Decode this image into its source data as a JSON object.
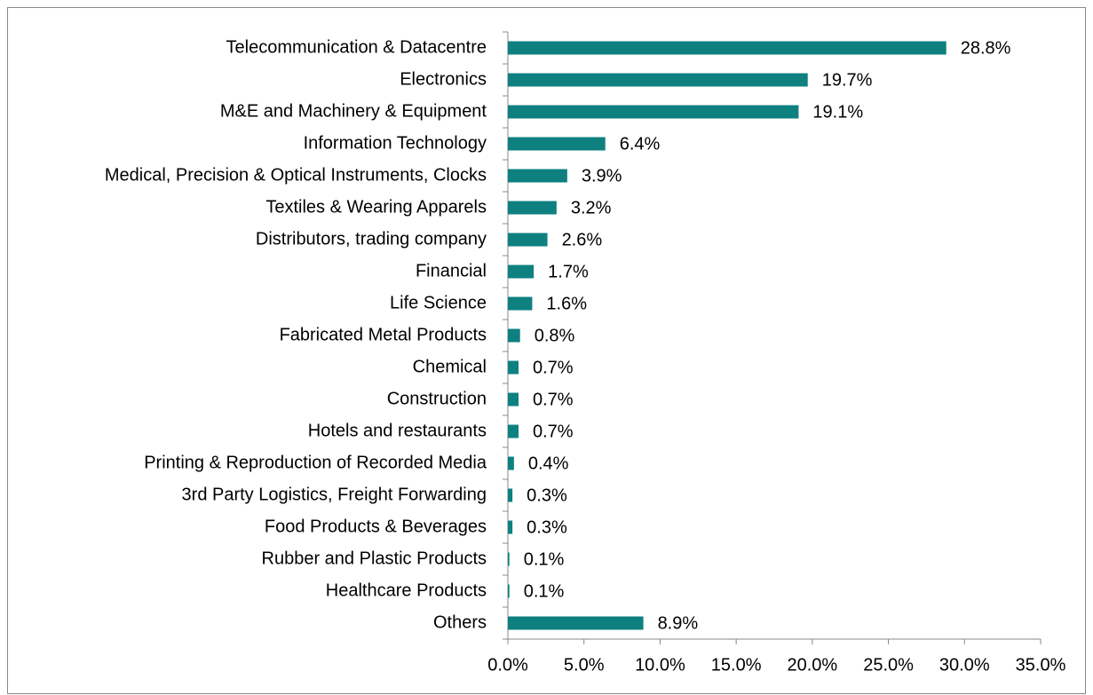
{
  "chart_data": {
    "type": "bar",
    "orientation": "horizontal",
    "categories": [
      "Telecommunication & Datacentre",
      "Electronics",
      "M&E and Machinery & Equipment",
      "Information Technology",
      "Medical, Precision & Optical Instruments, Clocks",
      "Textiles & Wearing Apparels",
      "Distributors, trading company",
      "Financial",
      "Life Science",
      "Fabricated Metal Products",
      "Chemical",
      "Construction",
      "Hotels and restaurants",
      "Printing & Reproduction of Recorded Media",
      "3rd Party Logistics, Freight Forwarding",
      "Food Products & Beverages",
      "Rubber and Plastic Products",
      "Healthcare Products",
      "Others"
    ],
    "values": [
      28.8,
      19.7,
      19.1,
      6.4,
      3.9,
      3.2,
      2.6,
      1.7,
      1.6,
      0.8,
      0.7,
      0.7,
      0.7,
      0.4,
      0.3,
      0.3,
      0.1,
      0.1,
      8.9
    ],
    "value_labels": [
      "28.8%",
      "19.7%",
      "19.1%",
      "6.4%",
      "3.9%",
      "3.2%",
      "2.6%",
      "1.7%",
      "1.6%",
      "0.8%",
      "0.7%",
      "0.7%",
      "0.7%",
      "0.4%",
      "0.3%",
      "0.3%",
      "0.1%",
      "0.1%",
      "8.9%"
    ],
    "color": "#0e8080",
    "xlim": [
      0,
      35
    ],
    "xticks": [
      {
        "value": 0,
        "label": "0.0%"
      },
      {
        "value": 5,
        "label": "5.0%"
      },
      {
        "value": 10,
        "label": "10.0%"
      },
      {
        "value": 15,
        "label": "15.0%"
      },
      {
        "value": 20,
        "label": "20.0%"
      },
      {
        "value": 25,
        "label": "25.0%"
      },
      {
        "value": 30,
        "label": "30.0%"
      },
      {
        "value": 35,
        "label": "35.0%"
      }
    ],
    "grid": false
  }
}
